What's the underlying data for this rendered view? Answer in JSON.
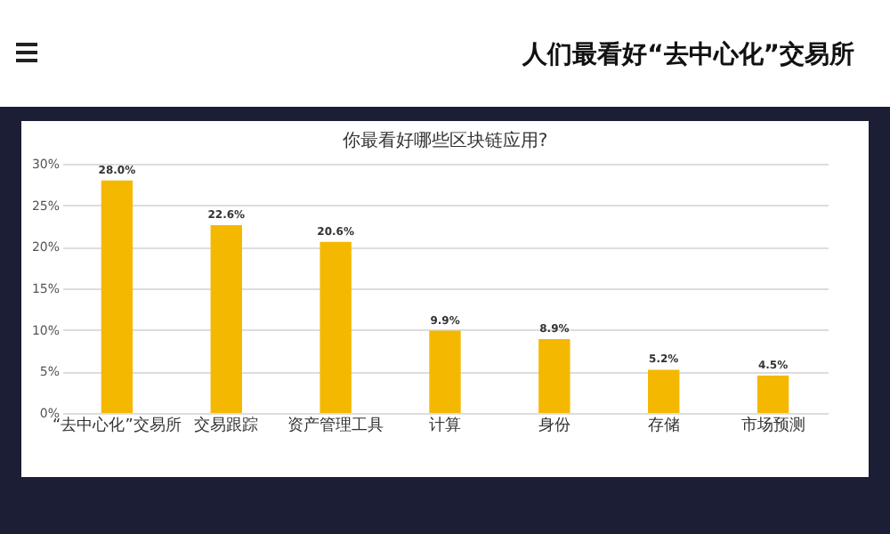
{
  "chart_data": {
    "type": "bar",
    "title": "你最看好哪些区块链应用?",
    "subtitle": "人们最看好“去中心化”交易所",
    "categories": [
      "“去中心化”交易所",
      "交易跟踪",
      "资产管理工具",
      "计算",
      "身份",
      "存储",
      "市场预测"
    ],
    "values": [
      28.0,
      22.6,
      20.6,
      9.9,
      8.9,
      5.2,
      4.5
    ],
    "color": "#f5b800",
    "ylim": [
      0,
      30
    ],
    "yticks": [
      {
        "value": 0,
        "label": "0%"
      },
      {
        "value": 5,
        "label": "5%"
      },
      {
        "value": 10,
        "label": "10%"
      },
      {
        "value": 15,
        "label": "15%"
      },
      {
        "value": 20,
        "label": "20%"
      },
      {
        "value": 25,
        "label": "25%"
      },
      {
        "value": 30,
        "label": "30%"
      }
    ],
    "grid": "y",
    "value_labels": [
      "28.0%",
      "22.6%",
      "20.6%",
      "9.9%",
      "8.9%",
      "5.2%",
      "4.5%"
    ]
  }
}
